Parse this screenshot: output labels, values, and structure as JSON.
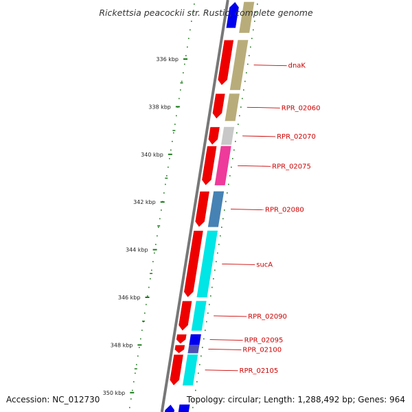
{
  "title": "Rickettsia peacockii str. Rustic, complete genome",
  "footer": {
    "accession": "Accession: NC_012730",
    "topology": "Topology: circular; Length: 1,288,492 bp; Genes: 964"
  },
  "colors": {
    "backbone": "#777777",
    "tick": "#1a7a1a",
    "label": "#cc0000",
    "orf": "#ee0000"
  },
  "ticks": [
    {
      "kbp": 336,
      "label": "336 kbp"
    },
    {
      "kbp": 338,
      "label": "338 kbp"
    },
    {
      "kbp": 340,
      "label": "340 kbp"
    },
    {
      "kbp": 342,
      "label": "342 kbp"
    },
    {
      "kbp": 344,
      "label": "344 kbp"
    },
    {
      "kbp": 346,
      "label": "346 kbp"
    },
    {
      "kbp": 348,
      "label": "348 kbp"
    },
    {
      "kbp": 350,
      "label": "350 kbp"
    }
  ],
  "genes": [
    {
      "name": "",
      "start_kbp": 333.6,
      "end_kbp": 334.9,
      "color": "#b8ad7a"
    },
    {
      "name": "dnaK",
      "start_kbp": 335.2,
      "end_kbp": 337.3,
      "color": "#b8ad7a"
    },
    {
      "name": "RPR_02060",
      "start_kbp": 337.45,
      "end_kbp": 338.6,
      "color": "#b8ad7a"
    },
    {
      "name": "RPR_02070",
      "start_kbp": 338.85,
      "end_kbp": 339.6,
      "color": "#c8c8c8"
    },
    {
      "name": "RPR_02075",
      "start_kbp": 339.65,
      "end_kbp": 341.3,
      "color": "#ee3a9a"
    },
    {
      "name": "RPR_02080",
      "start_kbp": 341.55,
      "end_kbp": 343.05,
      "color": "#4682b4"
    },
    {
      "name": "sucA",
      "start_kbp": 343.2,
      "end_kbp": 346.0,
      "color": "#00e5e5"
    },
    {
      "name": "RPR_02090",
      "start_kbp": 346.15,
      "end_kbp": 347.4,
      "color": "#00e5e5"
    },
    {
      "name": "RPR_02095",
      "start_kbp": 347.55,
      "end_kbp": 348.0,
      "color": "#0000ee"
    },
    {
      "name": "RPR_02100",
      "start_kbp": 348.0,
      "end_kbp": 348.35,
      "color": "#5050b4"
    },
    {
      "name": "RPR_02105",
      "start_kbp": 348.4,
      "end_kbp": 349.7,
      "color": "#00e5e5"
    },
    {
      "name": "",
      "start_kbp": 350.5,
      "end_kbp": 351.2,
      "color": "#0000ee"
    }
  ],
  "orfs": [
    {
      "start_kbp": 333.6,
      "end_kbp": 334.7,
      "strand": "forward",
      "color": "#0000ee"
    },
    {
      "start_kbp": 335.2,
      "end_kbp": 337.1,
      "strand": "reverse",
      "color": "#ee0000"
    },
    {
      "start_kbp": 337.45,
      "end_kbp": 338.5,
      "strand": "reverse",
      "color": "#ee0000"
    },
    {
      "start_kbp": 338.85,
      "end_kbp": 339.6,
      "strand": "reverse",
      "color": "#ee0000"
    },
    {
      "start_kbp": 339.65,
      "end_kbp": 341.3,
      "strand": "reverse",
      "color": "#ee0000"
    },
    {
      "start_kbp": 341.55,
      "end_kbp": 343.05,
      "strand": "reverse",
      "color": "#ee0000"
    },
    {
      "start_kbp": 343.2,
      "end_kbp": 346.0,
      "strand": "reverse",
      "color": "#ee0000"
    },
    {
      "start_kbp": 346.15,
      "end_kbp": 347.4,
      "strand": "reverse",
      "color": "#ee0000"
    },
    {
      "start_kbp": 347.55,
      "end_kbp": 347.95,
      "strand": "reverse",
      "color": "#ee0000"
    },
    {
      "start_kbp": 348.0,
      "end_kbp": 348.35,
      "strand": "reverse",
      "color": "#ee0000"
    },
    {
      "start_kbp": 348.4,
      "end_kbp": 349.7,
      "strand": "reverse",
      "color": "#ee0000"
    },
    {
      "start_kbp": 350.5,
      "end_kbp": 351.2,
      "strand": "forward",
      "color": "#0000ee"
    }
  ]
}
